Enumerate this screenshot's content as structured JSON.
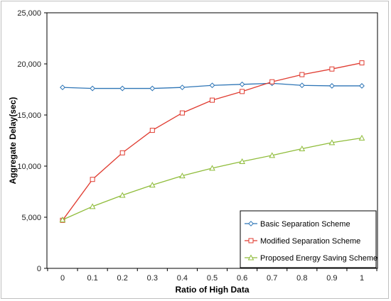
{
  "chart_data": {
    "type": "line",
    "title": "",
    "xlabel": "Ratio of High Data",
    "ylabel": "Aggregate Delay(sec)",
    "x": [
      0,
      0.1,
      0.2,
      0.3,
      0.4,
      0.5,
      0.6,
      0.7,
      0.8,
      0.9,
      1
    ],
    "x_tick_labels": [
      "0",
      "0.1",
      "0.2",
      "0.3",
      "0.4",
      "0.5",
      "0.6",
      "0.7",
      "0.8",
      "0.9",
      "1"
    ],
    "ylim": [
      0,
      25000
    ],
    "y_ticks": [
      0,
      5000,
      10000,
      15000,
      20000,
      25000
    ],
    "y_tick_labels": [
      "0",
      "5,000",
      "10,000",
      "15,000",
      "20,000",
      "25,000"
    ],
    "grid": false,
    "legend_position": "bottom-right",
    "series": [
      {
        "name": "Basic Separation Scheme",
        "color": "#2e75b6",
        "marker": "diamond",
        "values": [
          17700,
          17600,
          17600,
          17600,
          17700,
          17900,
          18000,
          18100,
          17900,
          17850,
          17850
        ]
      },
      {
        "name": "Modified Separation Scheme",
        "color": "#e03c31",
        "marker": "square",
        "values": [
          4700,
          8700,
          11300,
          13500,
          15200,
          16450,
          17300,
          18250,
          18950,
          19500,
          20100
        ]
      },
      {
        "name": "Proposed Energy Saving Scheme",
        "color": "#8fbc3a",
        "marker": "triangle",
        "values": [
          4750,
          6050,
          7150,
          8150,
          9050,
          9800,
          10450,
          11050,
          11700,
          12300,
          12750
        ]
      }
    ]
  }
}
